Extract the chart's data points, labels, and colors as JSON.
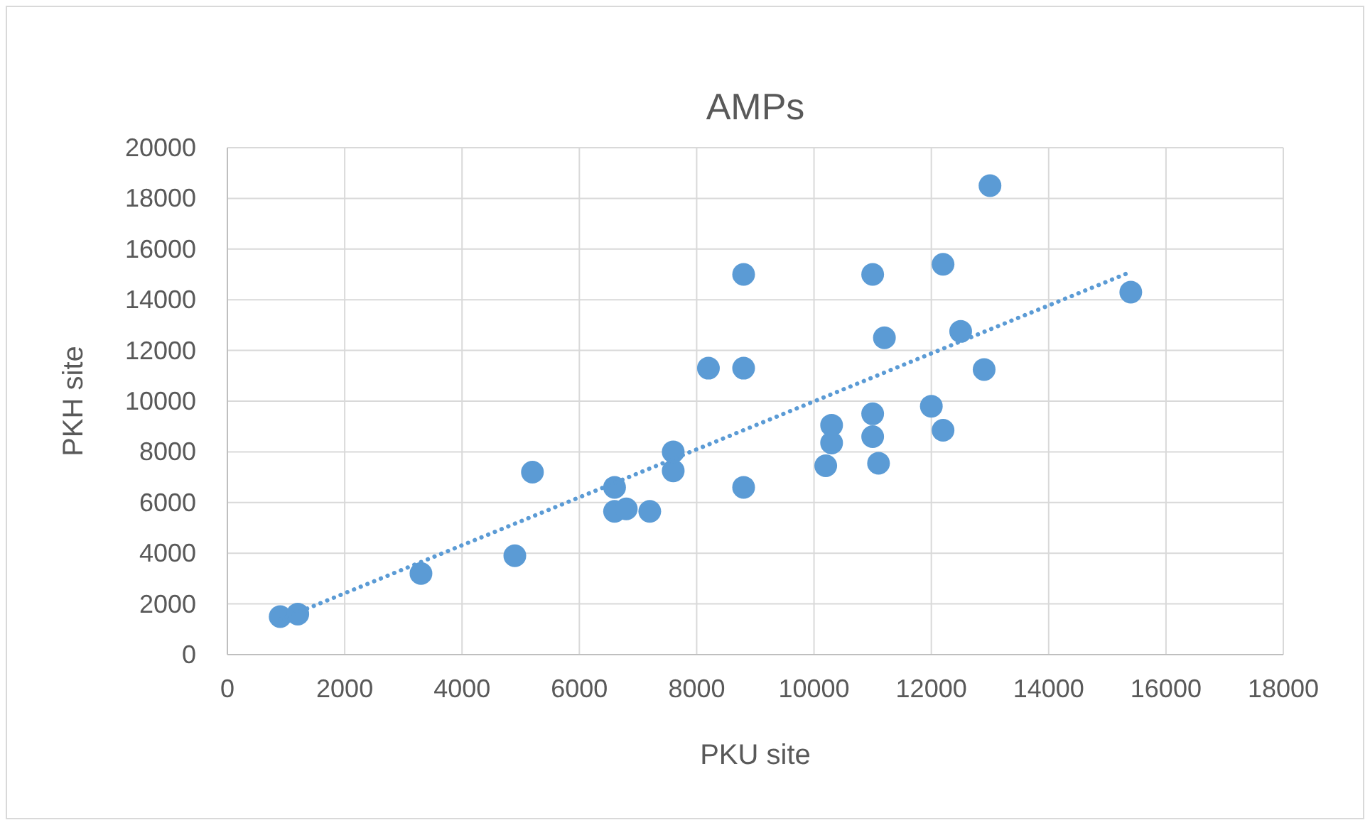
{
  "chart_data": {
    "type": "scatter",
    "title": "AMPs",
    "xlabel": "PKU site",
    "ylabel": "PKH site",
    "xlim": [
      0,
      18000
    ],
    "ylim": [
      0,
      20000
    ],
    "xticks": [
      0,
      2000,
      4000,
      6000,
      8000,
      10000,
      12000,
      14000,
      16000,
      18000
    ],
    "yticks": [
      0,
      2000,
      4000,
      6000,
      8000,
      10000,
      12000,
      14000,
      16000,
      18000,
      20000
    ],
    "grid": true,
    "series": [
      {
        "color": "#5b9bd5",
        "marker": "circle",
        "x": [
          900,
          1200,
          3300,
          4900,
          5200,
          6600,
          6600,
          6800,
          7200,
          7600,
          7600,
          8200,
          8800,
          8800,
          8800,
          10200,
          10300,
          10300,
          11000,
          11000,
          11000,
          11100,
          11200,
          12000,
          12200,
          12200,
          12500,
          12900,
          13000,
          15400
        ],
        "values": [
          1500,
          1600,
          3200,
          3900,
          7200,
          6600,
          5650,
          5750,
          5650,
          7250,
          8000,
          11300,
          15000,
          11300,
          6600,
          7450,
          9050,
          8350,
          15000,
          9500,
          8600,
          7550,
          12500,
          9800,
          8850,
          15400,
          12750,
          11250,
          18500,
          14300
        ]
      },
      {
        "type": "line",
        "color": "#5b9bd5",
        "marker": "none",
        "line_style": "dotted",
        "x": [
          900,
          15400
        ],
        "values": [
          1380,
          15100
        ]
      }
    ]
  }
}
